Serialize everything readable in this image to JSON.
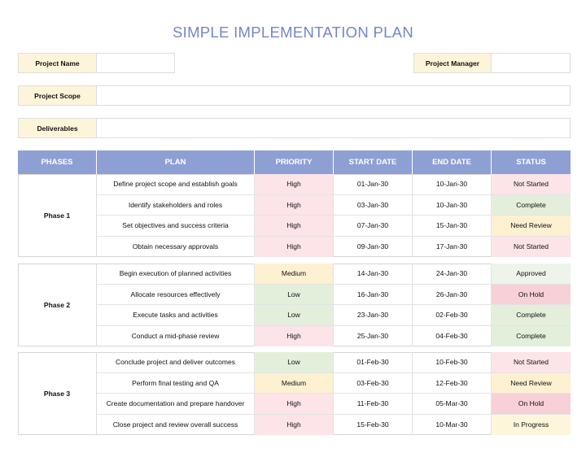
{
  "header": {
    "title": "SIMPLE IMPLEMENTATION PLAN"
  },
  "info": {
    "project_name_label": "Project Name",
    "project_manager_label": "Project Manager",
    "project_scope_label": "Project Scope",
    "deliverables_label": "Deliverables"
  },
  "table": {
    "columns": [
      "PHASES",
      "PLAN",
      "PRIORITY",
      "START DATE",
      "END DATE",
      "STATUS"
    ],
    "phases": [
      {
        "name": "Phase 1",
        "rows": [
          [
            "Define project scope and establish goals",
            "High",
            "01-Jan-30",
            "10-Jan-30",
            "Not Started"
          ],
          [
            "Identify stakeholders and roles",
            "High",
            "03-Jan-30",
            "10-Jan-30",
            "Complete"
          ],
          [
            "Set objectives and success criteria",
            "High",
            "07-Jan-30",
            "15-Jan-30",
            "Need Review"
          ],
          [
            "Obtain necessary approvals",
            "High",
            "09-Jan-30",
            "17-Jan-30",
            "Not Started"
          ]
        ]
      },
      {
        "name": "Phase 2",
        "rows": [
          [
            "Begin execution of planned activities",
            "Medium",
            "14-Jan-30",
            "24-Jan-30",
            "Approved"
          ],
          [
            "Allocate resources effectively",
            "Low",
            "16-Jan-30",
            "26-Jan-30",
            "On Hold"
          ],
          [
            "Execute tasks and activities",
            "Low",
            "23-Jan-30",
            "02-Feb-30",
            "Complete"
          ],
          [
            "Conduct a mid-phase review",
            "High",
            "25-Jan-30",
            "04-Feb-30",
            "Complete"
          ]
        ]
      },
      {
        "name": "Phase 3",
        "rows": [
          [
            "Conclude project and deliver outcomes",
            "Low",
            "01-Feb-30",
            "10-Feb-30",
            "Not Started"
          ],
          [
            "Perform final testing and QA",
            "Medium",
            "03-Feb-30",
            "12-Feb-30",
            "Need Review"
          ],
          [
            "Create documentation and prepare handover",
            "High",
            "11-Feb-30",
            "05-Mar-30",
            "On Hold"
          ],
          [
            "Close project and review overall success",
            "High",
            "15-Feb-30",
            "10-Mar-30",
            "In Progress"
          ]
        ]
      }
    ]
  },
  "colors": {
    "priority": {
      "High": "#fce4e9",
      "Medium": "#fdf1d2",
      "Low": "#e3efdb"
    },
    "status": {
      "Not Started": "#fce4e9",
      "Complete": "#e3efdb",
      "Need Review": "#fdf1d2",
      "Approved": "#eef4ea",
      "On Hold": "#f8d0d7",
      "In Progress": "#fdf6da"
    }
  }
}
